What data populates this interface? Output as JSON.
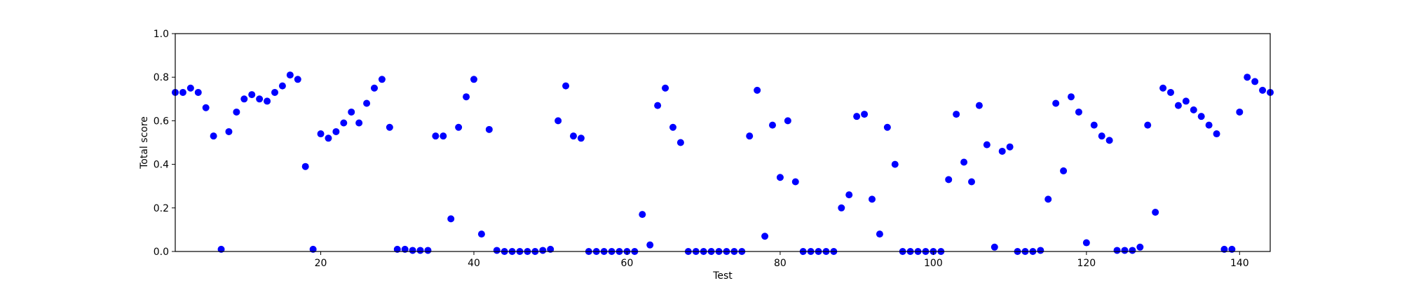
{
  "chart_data": {
    "type": "scatter",
    "title": "",
    "xlabel": "Test",
    "ylabel": "Total score",
    "xlim": [
      1,
      144
    ],
    "ylim": [
      0.0,
      1.0
    ],
    "x_ticks": [
      20,
      40,
      60,
      80,
      100,
      120,
      140
    ],
    "y_ticks": [
      0.0,
      0.2,
      0.4,
      0.6,
      0.8,
      1.0
    ],
    "x_tick_labels": [
      "20",
      "40",
      "60",
      "80",
      "100",
      "120",
      "140"
    ],
    "y_tick_labels": [
      "0.0",
      "0.2",
      "0.4",
      "0.6",
      "0.8",
      "1.0"
    ],
    "grid": false,
    "marker_color": "#0000ff",
    "series": [
      {
        "x": [
          1,
          2,
          3,
          4,
          5,
          6,
          7,
          8,
          9,
          10,
          11,
          12,
          13,
          14,
          15,
          16,
          17,
          18,
          19,
          20,
          21,
          22,
          23,
          24,
          25,
          26,
          27,
          28,
          29,
          30,
          31,
          32,
          33,
          34,
          35,
          36,
          37,
          38,
          39,
          40,
          41,
          42,
          43,
          44,
          45,
          46,
          47,
          48,
          49,
          50,
          51,
          52,
          53,
          54,
          55,
          56,
          57,
          58,
          59,
          60,
          61,
          62,
          63,
          64,
          65,
          66,
          67,
          68,
          69,
          70,
          71,
          72,
          73,
          74,
          75,
          76,
          77,
          78,
          79,
          80,
          81,
          82,
          83,
          84,
          85,
          86,
          87,
          88,
          89,
          90,
          91,
          92,
          93,
          94,
          95,
          96,
          97,
          98,
          99,
          100,
          101,
          102,
          103,
          104,
          105,
          106,
          107,
          108,
          109,
          110,
          111,
          112,
          113,
          114,
          115,
          116,
          117,
          118,
          119,
          120,
          121,
          122,
          123,
          124,
          125,
          126,
          127,
          128,
          129,
          130,
          131,
          132,
          133,
          134,
          135,
          136,
          137,
          138,
          139,
          140,
          141,
          142,
          143,
          144
        ],
        "y": [
          0.73,
          0.73,
          0.75,
          0.73,
          0.66,
          0.53,
          0.01,
          0.55,
          0.64,
          0.7,
          0.72,
          0.7,
          0.69,
          0.73,
          0.76,
          0.81,
          0.79,
          0.39,
          0.01,
          0.54,
          0.52,
          0.55,
          0.59,
          0.64,
          0.59,
          0.68,
          0.75,
          0.79,
          0.57,
          0.01,
          0.01,
          0.005,
          0.005,
          0.005,
          0.53,
          0.53,
          0.15,
          0.57,
          0.71,
          0.79,
          0.08,
          0.56,
          0.005,
          0.0,
          0.0,
          0.0,
          0.0,
          0.0,
          0.005,
          0.01,
          0.6,
          0.76,
          0.53,
          0.52,
          0.0,
          0.0,
          0.0,
          0.0,
          0.0,
          0.0,
          0.0,
          0.17,
          0.03,
          0.67,
          0.75,
          0.57,
          0.5,
          0.0,
          0.0,
          0.0,
          0.0,
          0.0,
          0.0,
          0.0,
          0.0,
          0.53,
          0.74,
          0.07,
          0.58,
          0.34,
          0.6,
          0.32,
          0.0,
          0.0,
          0.0,
          0.0,
          0.0,
          0.2,
          0.26,
          0.62,
          0.63,
          0.24,
          0.08,
          0.57,
          0.4,
          0.0,
          0.0,
          0.0,
          0.0,
          0.0,
          0.0,
          0.33,
          0.63,
          0.41,
          0.32,
          0.67,
          0.49,
          0.02,
          0.46,
          0.48,
          0.0,
          0.0,
          0.0,
          0.005,
          0.24,
          0.68,
          0.37,
          0.71,
          0.64,
          0.04,
          0.58,
          0.53,
          0.51,
          0.005,
          0.005,
          0.005,
          0.02,
          0.58,
          0.18,
          0.75,
          0.73,
          0.67,
          0.69,
          0.65,
          0.62,
          0.58,
          0.54,
          0.01,
          0.01,
          0.64,
          0.8,
          0.78,
          0.74,
          0.73
        ]
      }
    ]
  }
}
